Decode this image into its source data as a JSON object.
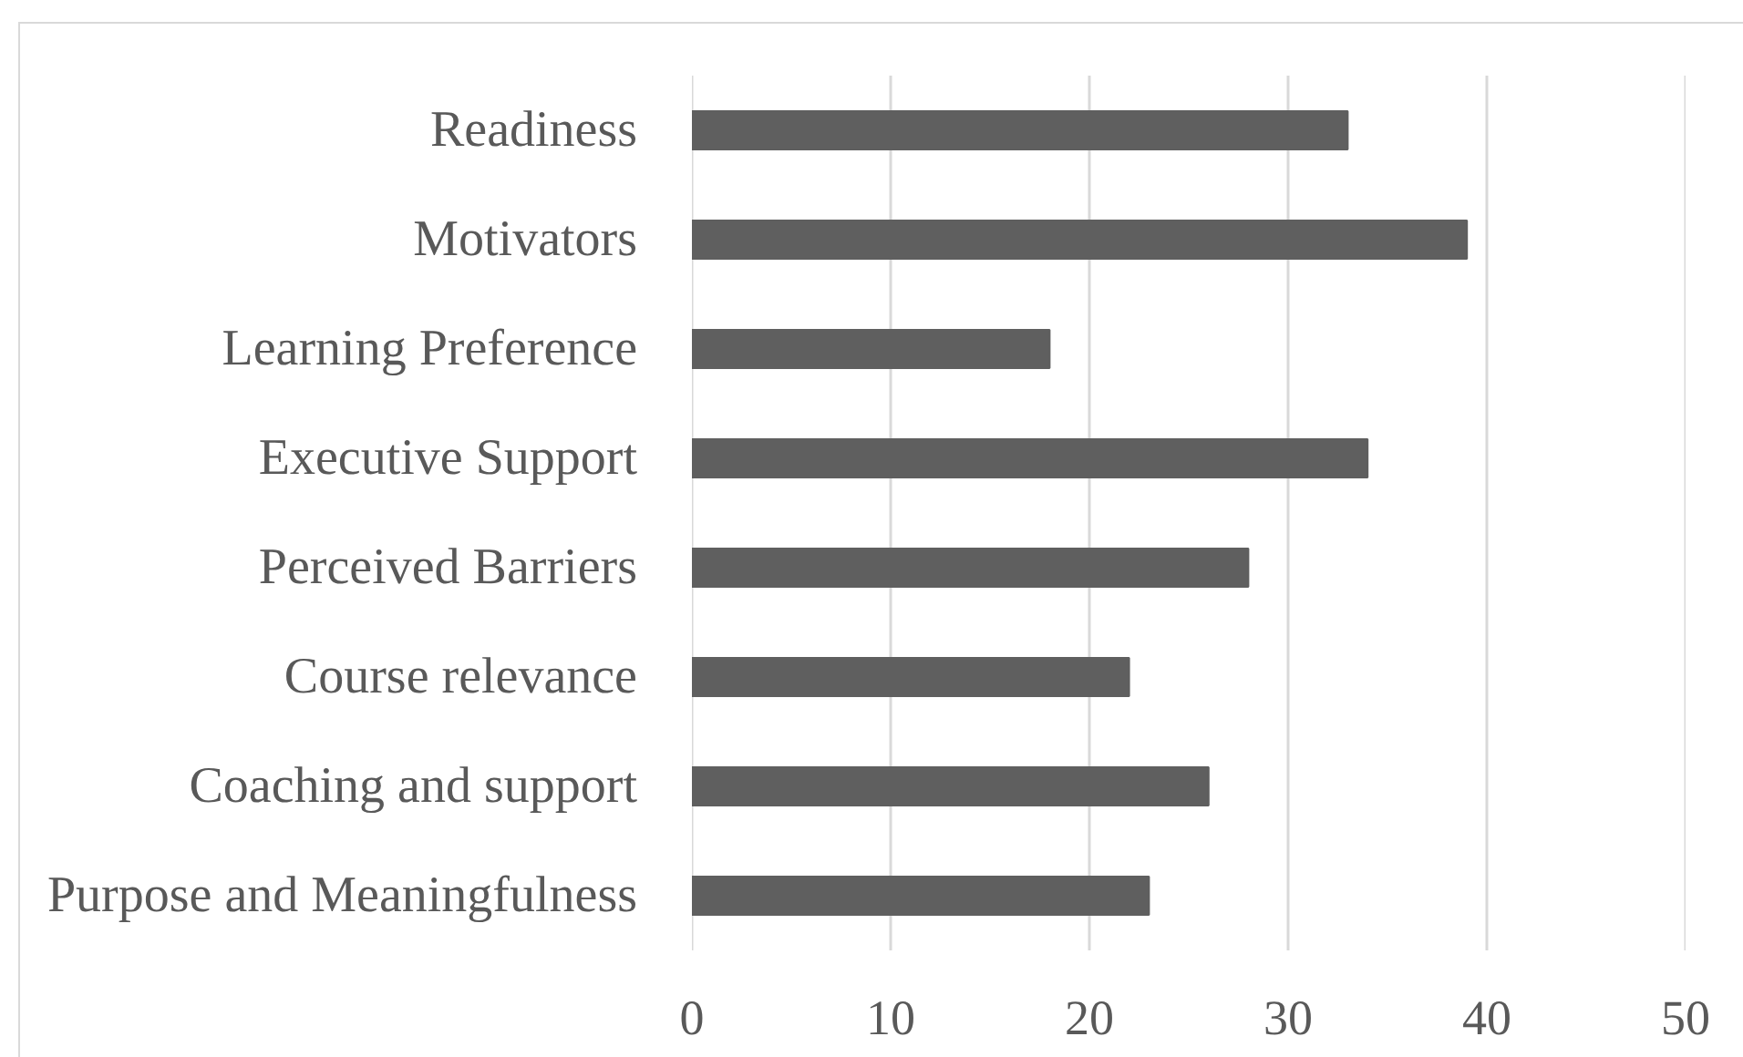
{
  "chart_data": {
    "type": "bar",
    "orientation": "horizontal",
    "categories": [
      "Readiness",
      "Motivators",
      "Learning Preference",
      "Executive Support",
      "Perceived Barriers",
      "Course relevance",
      "Coaching and support",
      "Purpose and Meaningfulness"
    ],
    "values": [
      33,
      39,
      18,
      34,
      28,
      22,
      26,
      23
    ],
    "color": "#5f5f5f",
    "xlim": [
      0,
      50
    ],
    "xticks": [
      0,
      10,
      20,
      30,
      40,
      50
    ],
    "grid": "x"
  }
}
